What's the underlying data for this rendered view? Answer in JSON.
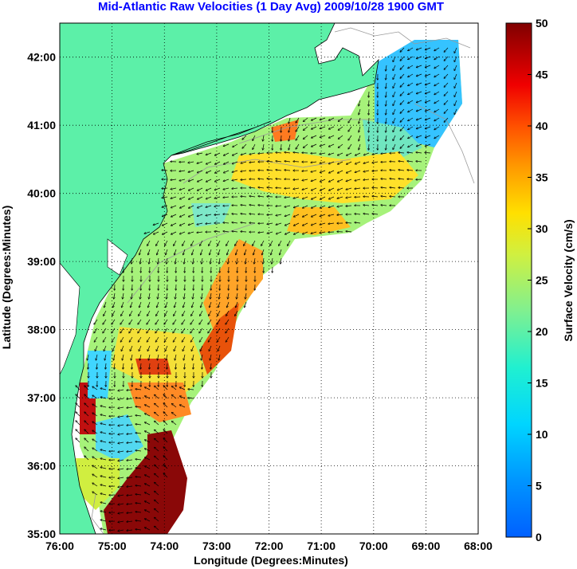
{
  "title": "Mid-Atlantic Raw Velocities (1 Day Avg) 2009/10/28 1900 GMT",
  "map": {
    "xlabel": "Longitude (Degrees:Minutes)",
    "ylabel": "Latitude (Degrees:Minutes)",
    "x_ticks": [
      "76:00",
      "75:00",
      "74:00",
      "73:00",
      "72:00",
      "71:00",
      "70:00",
      "69:00",
      "68:00"
    ],
    "y_ticks": [
      "35:00",
      "36:00",
      "37:00",
      "38:00",
      "39:00",
      "40:00",
      "41:00",
      "42:00"
    ],
    "lon_range": [
      -76,
      -68
    ],
    "lat_range": [
      35,
      42.5
    ],
    "land_color": "#5cf0a8",
    "grid": "dotted"
  },
  "colorbar": {
    "label": "Surface Velocity (cm/s)",
    "ticks": [
      "0",
      "5",
      "10",
      "15",
      "20",
      "25",
      "30",
      "35",
      "40",
      "45",
      "50"
    ],
    "range": [
      0,
      50
    ],
    "colormap": "jet"
  }
}
